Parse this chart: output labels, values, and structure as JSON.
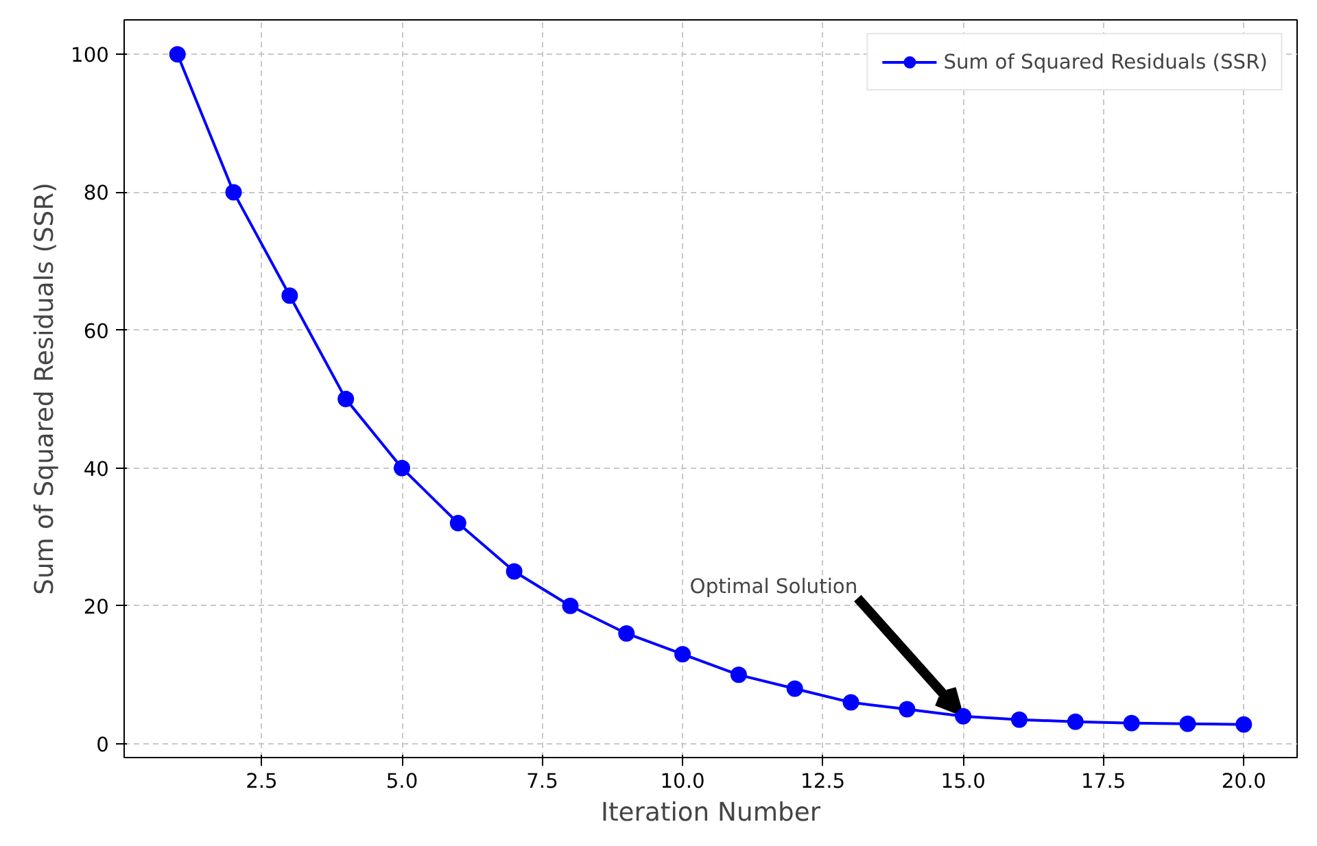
{
  "chart_data": {
    "type": "line",
    "xlabel": "Iteration Number",
    "ylabel": "Sum of Squared Residuals (SSR)",
    "x": [
      1,
      2,
      3,
      4,
      5,
      6,
      7,
      8,
      9,
      10,
      11,
      12,
      13,
      14,
      15,
      16,
      17,
      18,
      19,
      20
    ],
    "series": [
      {
        "name": "Sum of Squared Residuals (SSR)",
        "color": "#0000ff",
        "values": [
          100,
          80,
          65,
          50,
          40,
          32,
          25,
          20,
          16,
          13,
          10,
          8,
          6,
          5,
          4,
          3.5,
          3.2,
          3,
          2.9,
          2.8
        ]
      }
    ],
    "xlim": [
      0.05,
      20.95
    ],
    "ylim": [
      -2,
      105
    ],
    "xticks": [
      {
        "value": 2.5,
        "label": "2.5"
      },
      {
        "value": 5,
        "label": "5.0"
      },
      {
        "value": 7.5,
        "label": "7.5"
      },
      {
        "value": 10,
        "label": "10.0"
      },
      {
        "value": 12.5,
        "label": "12.5"
      },
      {
        "value": 15,
        "label": "15.0"
      },
      {
        "value": 17.5,
        "label": "17.5"
      },
      {
        "value": 20,
        "label": "20.0"
      }
    ],
    "yticks": [
      0,
      20,
      40,
      60,
      80,
      100
    ],
    "annotations": [
      {
        "text": "Optimal Solution",
        "x": 15,
        "y": 4
      }
    ],
    "grid": true,
    "legend": "top right",
    "marker": "circle",
    "line_style": "solid"
  }
}
